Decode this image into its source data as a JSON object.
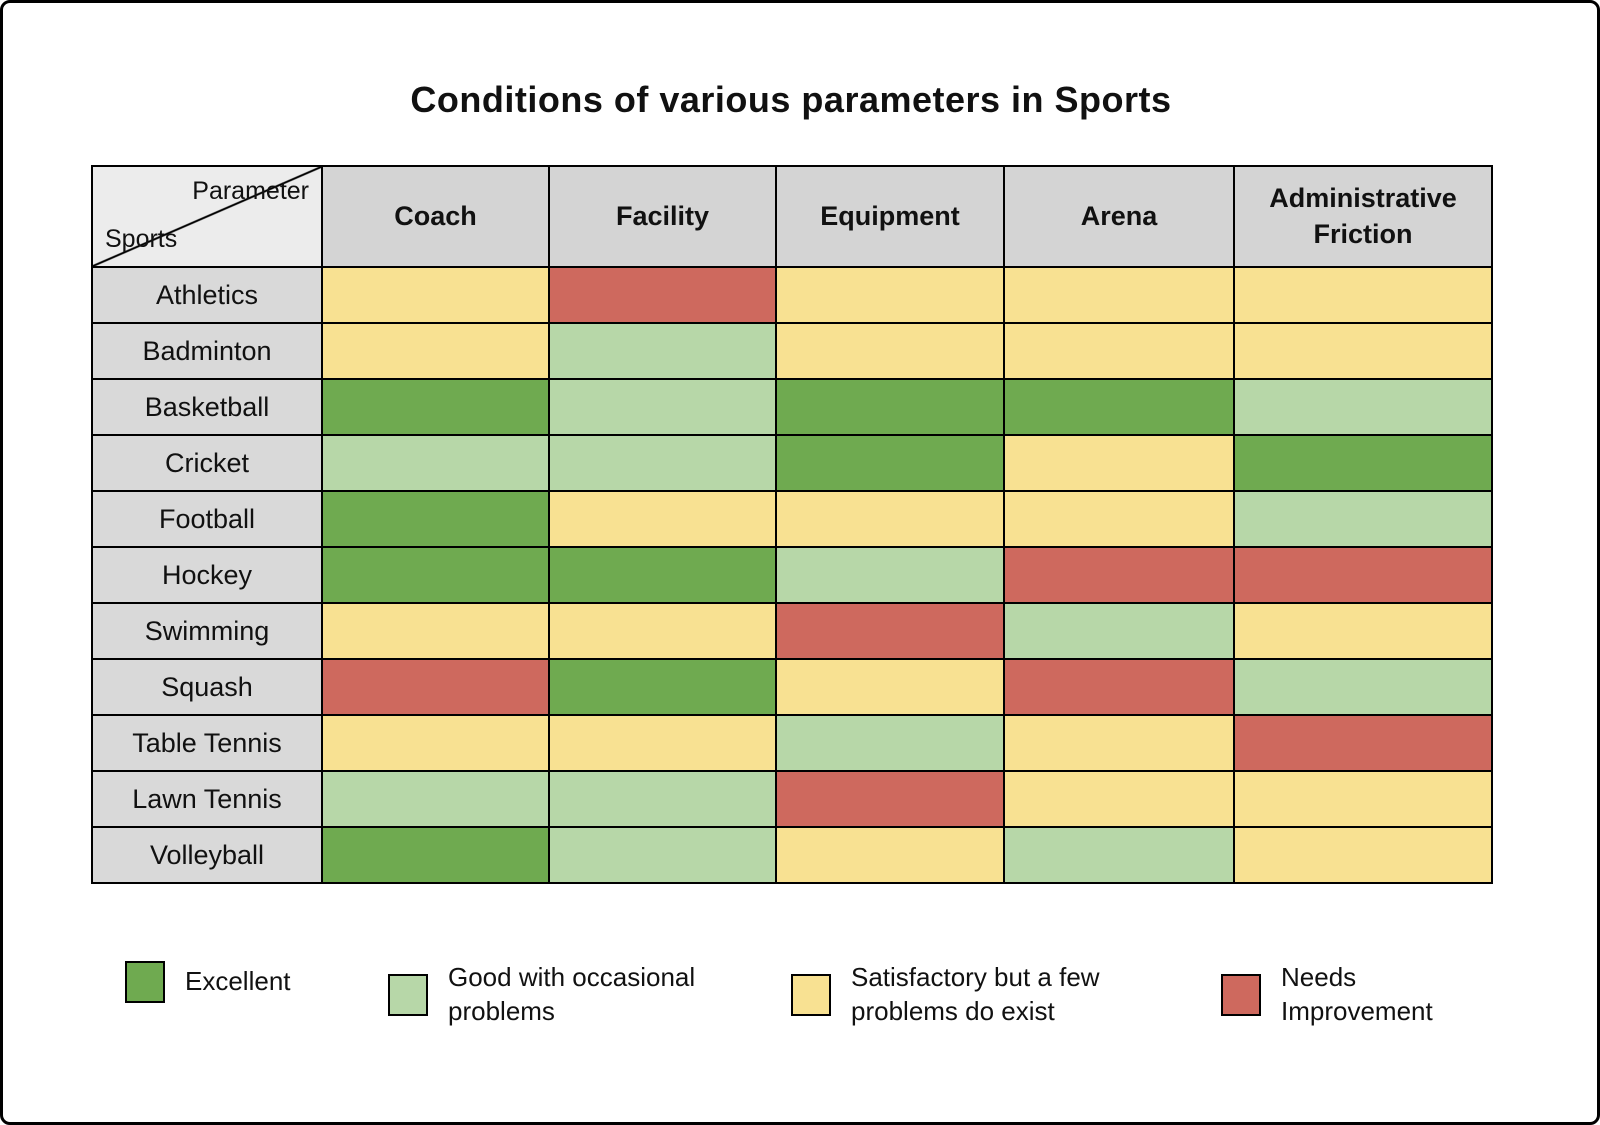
{
  "title": "Conditions of various parameters in Sports",
  "table": {
    "corner_top": "Parameter",
    "corner_bottom": "Sports",
    "columns": [
      "Coach",
      "Facility",
      "Equipment",
      "Arena",
      "Administrative Friction"
    ],
    "rows": [
      {
        "sport": "Athletics",
        "cells": [
          "satisfactory",
          "needs_improvement",
          "satisfactory",
          "satisfactory",
          "satisfactory"
        ]
      },
      {
        "sport": "Badminton",
        "cells": [
          "satisfactory",
          "good",
          "satisfactory",
          "satisfactory",
          "satisfactory"
        ]
      },
      {
        "sport": "Basketball",
        "cells": [
          "excellent",
          "good",
          "excellent",
          "excellent",
          "good"
        ]
      },
      {
        "sport": "Cricket",
        "cells": [
          "good",
          "good",
          "excellent",
          "satisfactory",
          "excellent"
        ]
      },
      {
        "sport": "Football",
        "cells": [
          "excellent",
          "satisfactory",
          "satisfactory",
          "satisfactory",
          "good"
        ]
      },
      {
        "sport": "Hockey",
        "cells": [
          "excellent",
          "excellent",
          "good",
          "needs_improvement",
          "needs_improvement"
        ]
      },
      {
        "sport": "Swimming",
        "cells": [
          "satisfactory",
          "satisfactory",
          "needs_improvement",
          "good",
          "satisfactory"
        ]
      },
      {
        "sport": "Squash",
        "cells": [
          "needs_improvement",
          "excellent",
          "satisfactory",
          "needs_improvement",
          "good"
        ]
      },
      {
        "sport": "Table Tennis",
        "cells": [
          "satisfactory",
          "satisfactory",
          "good",
          "satisfactory",
          "needs_improvement"
        ]
      },
      {
        "sport": "Lawn Tennis",
        "cells": [
          "good",
          "good",
          "needs_improvement",
          "satisfactory",
          "satisfactory"
        ]
      },
      {
        "sport": "Volleyball",
        "cells": [
          "excellent",
          "good",
          "satisfactory",
          "good",
          "satisfactory"
        ]
      }
    ]
  },
  "legend": {
    "items": [
      {
        "key": "excellent",
        "label": "Excellent"
      },
      {
        "key": "good",
        "label": "Good with occasional problems"
      },
      {
        "key": "satisfactory",
        "label": "Satisfactory but a few problems do exist"
      },
      {
        "key": "needs_improvement",
        "label": "Needs Improvement"
      }
    ]
  },
  "colors": {
    "excellent": "#6faa50",
    "good": "#b7d7a8",
    "satisfactory": "#f8e192",
    "needs_improvement": "#ce695e",
    "header_gray": "#d4d4d4",
    "row_label_gray": "#d9d9d9",
    "corner_gray": "#ececec"
  },
  "chart_data": {
    "type": "heatmap",
    "title": "Conditions of various parameters in Sports",
    "x_labels": [
      "Coach",
      "Facility",
      "Equipment",
      "Arena",
      "Administrative Friction"
    ],
    "y_labels": [
      "Athletics",
      "Badminton",
      "Basketball",
      "Cricket",
      "Football",
      "Hockey",
      "Swimming",
      "Squash",
      "Table Tennis",
      "Lawn Tennis",
      "Volleyball"
    ],
    "values": [
      [
        "satisfactory",
        "needs_improvement",
        "satisfactory",
        "satisfactory",
        "satisfactory"
      ],
      [
        "satisfactory",
        "good",
        "satisfactory",
        "satisfactory",
        "satisfactory"
      ],
      [
        "excellent",
        "good",
        "excellent",
        "excellent",
        "good"
      ],
      [
        "good",
        "good",
        "excellent",
        "satisfactory",
        "excellent"
      ],
      [
        "excellent",
        "satisfactory",
        "satisfactory",
        "satisfactory",
        "good"
      ],
      [
        "excellent",
        "excellent",
        "good",
        "needs_improvement",
        "needs_improvement"
      ],
      [
        "satisfactory",
        "satisfactory",
        "needs_improvement",
        "good",
        "satisfactory"
      ],
      [
        "needs_improvement",
        "excellent",
        "satisfactory",
        "needs_improvement",
        "good"
      ],
      [
        "satisfactory",
        "satisfactory",
        "good",
        "satisfactory",
        "needs_improvement"
      ],
      [
        "good",
        "good",
        "needs_improvement",
        "satisfactory",
        "satisfactory"
      ],
      [
        "excellent",
        "good",
        "satisfactory",
        "good",
        "satisfactory"
      ]
    ],
    "scale": {
      "excellent": "Excellent",
      "good": "Good with occasional problems",
      "satisfactory": "Satisfactory but a few problems do exist",
      "needs_improvement": "Needs Improvement"
    },
    "legend_position": "bottom"
  }
}
